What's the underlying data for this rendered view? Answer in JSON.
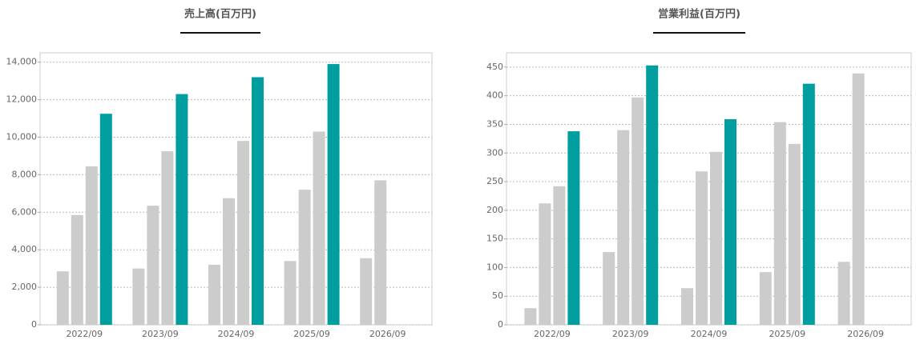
{
  "chart_data": [
    {
      "type": "bar",
      "title": "売上高(百万円)",
      "categories": [
        "2022/09",
        "2023/09",
        "2024/09",
        "2025/09",
        "2026/09"
      ],
      "series": [
        {
          "color": "#cccccc",
          "values": [
            2850,
            3000,
            3200,
            3400,
            3550
          ]
        },
        {
          "color": "#cccccc",
          "values": [
            5850,
            6350,
            6750,
            7200,
            7700
          ]
        },
        {
          "color": "#cccccc",
          "values": [
            8450,
            9250,
            9800,
            10300,
            null
          ]
        },
        {
          "color": "#009e9f",
          "values": [
            11250,
            12300,
            13200,
            13900,
            null
          ]
        }
      ],
      "ylim": [
        0,
        14500
      ],
      "yticks": [
        0,
        {
          "value": 2000,
          "label": "2,000"
        },
        {
          "value": 4000,
          "label": "4,000"
        },
        {
          "value": 6000,
          "label": "6,000"
        },
        {
          "value": 8000,
          "label": "8,000"
        },
        {
          "value": 10000,
          "label": "10,000"
        },
        {
          "value": 12000,
          "label": "12,000"
        },
        {
          "value": 14000,
          "label": "14,000"
        }
      ],
      "grid": true
    },
    {
      "type": "bar",
      "title": "営業利益(百万円)",
      "categories": [
        "2022/09",
        "2023/09",
        "2024/09",
        "2025/09",
        "2026/09"
      ],
      "series": [
        {
          "color": "#cccccc",
          "values": [
            29,
            127,
            64,
            92,
            110
          ]
        },
        {
          "color": "#cccccc",
          "values": [
            212,
            340,
            268,
            354,
            439
          ]
        },
        {
          "color": "#cccccc",
          "values": [
            242,
            397,
            302,
            316,
            null
          ]
        },
        {
          "color": "#009e9f",
          "values": [
            338,
            453,
            359,
            421,
            null
          ]
        }
      ],
      "ylim": [
        0,
        475
      ],
      "yticks": [
        0,
        50,
        100,
        150,
        200,
        250,
        300,
        350,
        400,
        450
      ],
      "grid": true
    }
  ]
}
